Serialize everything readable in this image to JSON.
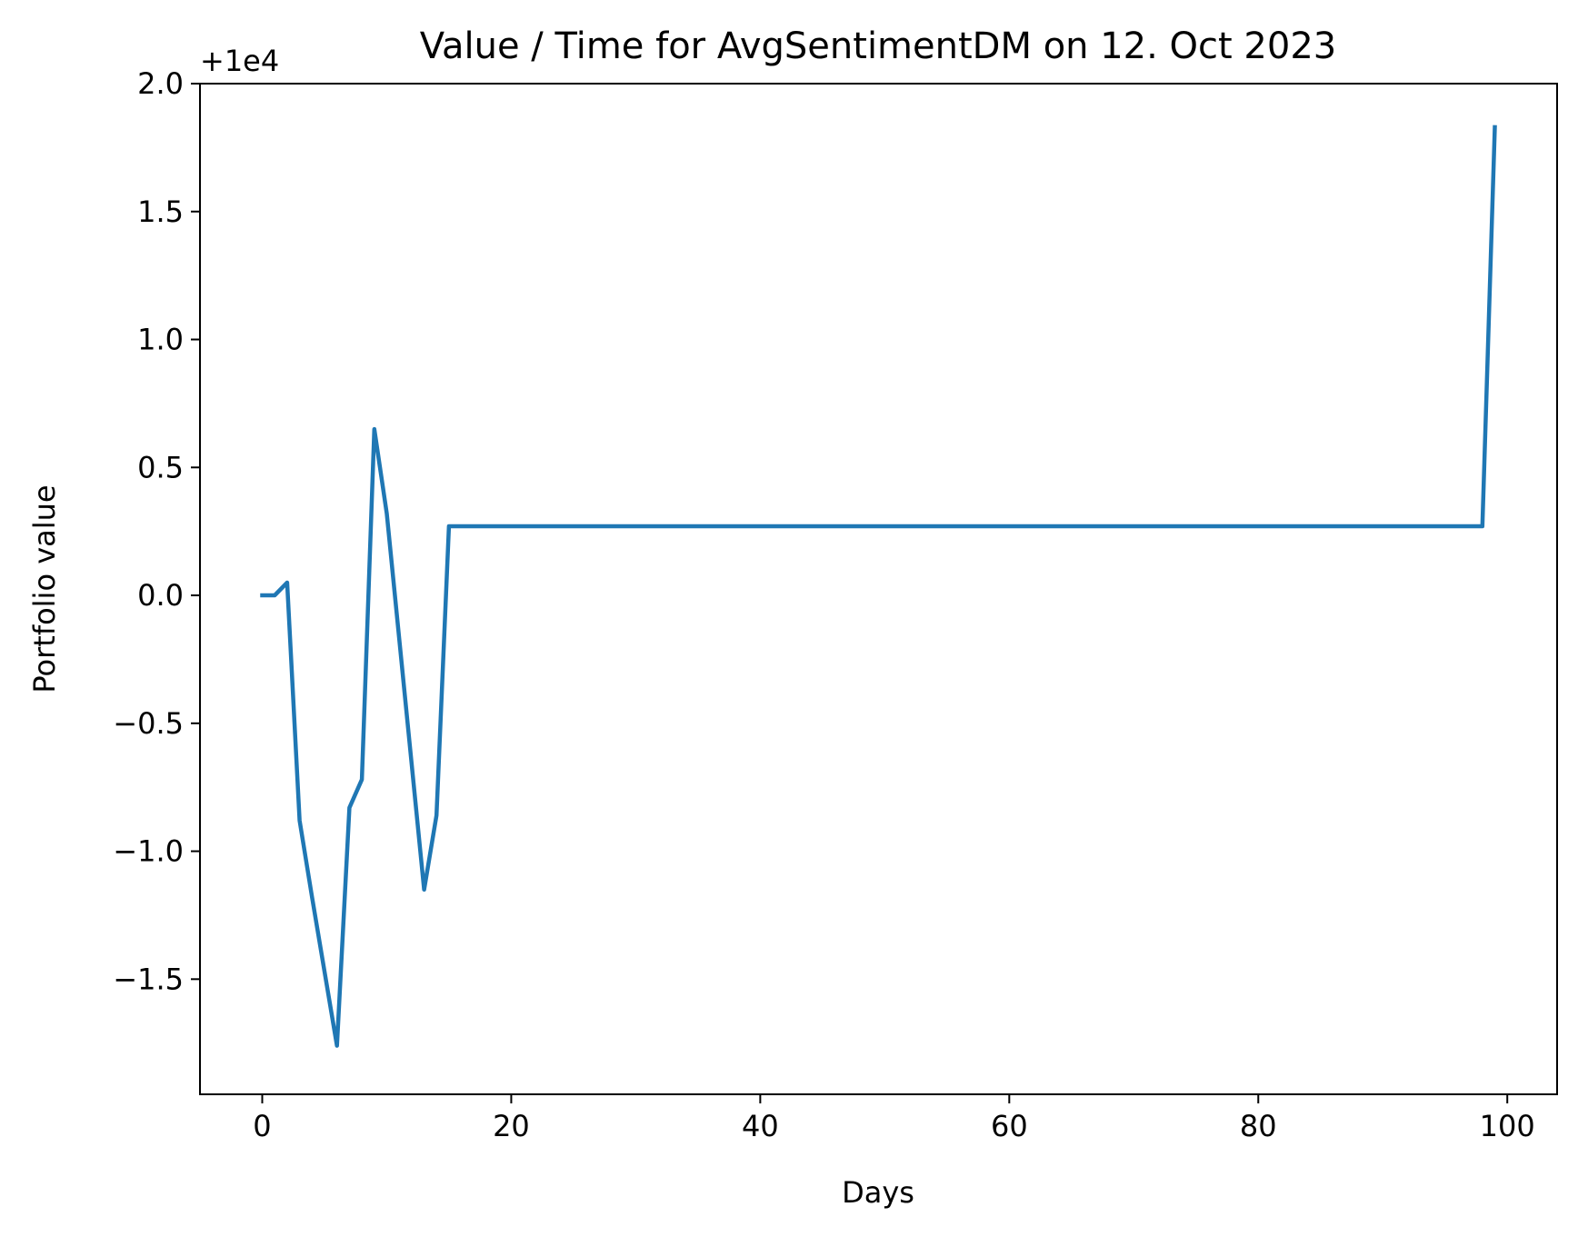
{
  "chart_data": {
    "type": "line",
    "title": "Value / Time for AvgSentimentDM on 12. Oct 2023",
    "xlabel": "Days",
    "ylabel": "Portfolio value",
    "y_offset_label": "+1e4",
    "y_offset": 10000,
    "xlim": [
      -5,
      104
    ],
    "ylim": [
      -1.95,
      2.0
    ],
    "xticks": [
      0,
      20,
      40,
      60,
      80,
      100
    ],
    "yticks": [
      -1.5,
      -1.0,
      -0.5,
      0.0,
      0.5,
      1.0,
      1.5,
      2.0
    ],
    "xtick_labels": [
      "0",
      "20",
      "40",
      "60",
      "80",
      "100"
    ],
    "ytick_labels": [
      "−1.5",
      "−1.0",
      "−0.5",
      "0.0",
      "0.5",
      "1.0",
      "1.5",
      "2.0"
    ],
    "grid": false,
    "line_color": "#1f77b4",
    "series": [
      {
        "x": [
          0,
          1,
          2,
          3,
          4,
          5,
          6,
          7,
          8,
          9,
          10,
          11,
          12,
          13,
          14,
          15,
          98,
          99
        ],
        "y": [
          0.0,
          0.0,
          0.05,
          -0.88,
          -1.18,
          -1.47,
          -1.76,
          -0.83,
          -0.72,
          0.65,
          0.32,
          -0.17,
          -0.66,
          -1.15,
          -0.86,
          0.27,
          0.27,
          1.83
        ]
      }
    ]
  }
}
